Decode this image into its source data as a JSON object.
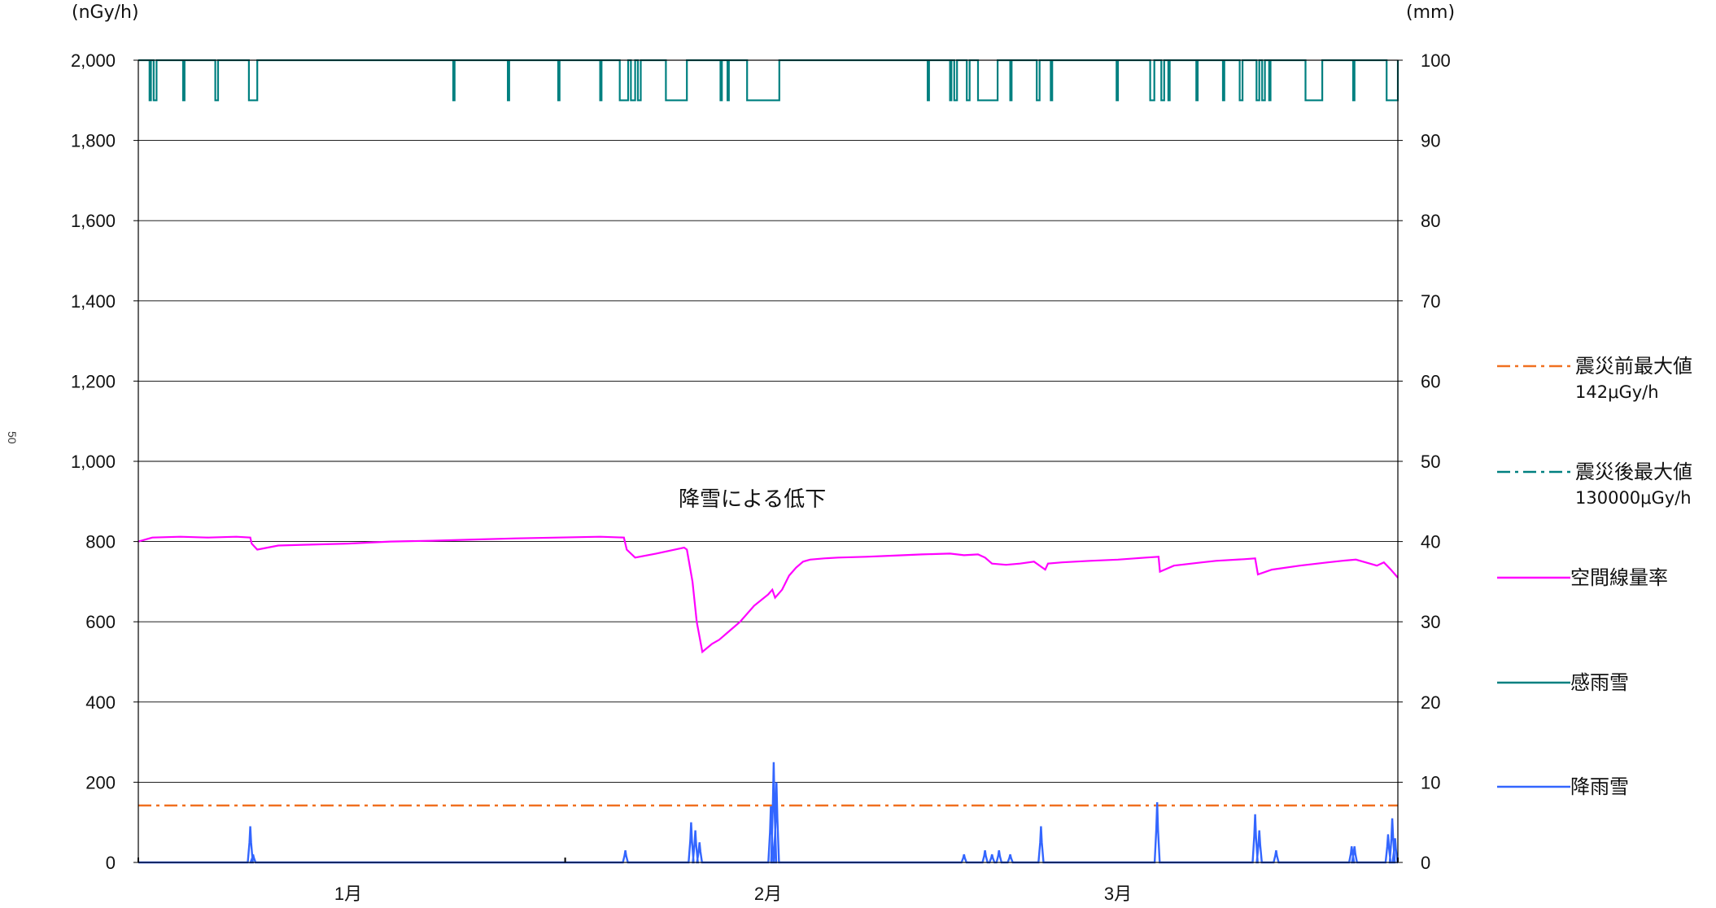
{
  "chart_data": {
    "type": "line",
    "y_left_unit": "(nGy/h)",
    "y_right_unit": "(mm)",
    "y_left_lim": [
      0,
      2000
    ],
    "y_right_lim": [
      0,
      100
    ],
    "y_left_ticks": [
      "0",
      "200",
      "400",
      "600",
      "800",
      "1,000",
      "1,200",
      "1,400",
      "1,600",
      "1,800",
      "2,000"
    ],
    "y_right_ticks": [
      "0",
      "10",
      "20",
      "30",
      "40",
      "50",
      "60",
      "70",
      "80",
      "90",
      "100"
    ],
    "x_range_days": [
      0,
      90
    ],
    "x_month_labels": [
      {
        "label": "1月",
        "day": 15
      },
      {
        "label": "2月",
        "day": 45
      },
      {
        "label": "3月",
        "day": 70
      }
    ],
    "x_tick_marks": [
      0,
      30.5,
      90
    ],
    "annotation": "降雪による低下",
    "page_number": "50",
    "series": [
      {
        "name": "震災前最大値",
        "legend_sub": "142μGy/h",
        "axis": "left",
        "style": "dashdot",
        "color": "#F07020",
        "x": [
          0,
          90
        ],
        "y": [
          142,
          142
        ]
      },
      {
        "name": "震災後最大値",
        "legend_sub": "130000μGy/h",
        "axis": "left",
        "style": "dashdot",
        "color": "#008080",
        "x": [],
        "y": []
      },
      {
        "name": "空間線量率",
        "axis": "left",
        "style": "solid",
        "color": "#FF00FF",
        "x": [
          0,
          1,
          3,
          5,
          7,
          8,
          8.1,
          8.5,
          10,
          12,
          15,
          18,
          21,
          24,
          27,
          30,
          33,
          34.7,
          34.9,
          35.5,
          37,
          39,
          39.2,
          39.6,
          39.9,
          40.3,
          41,
          41.5,
          42,
          43,
          44,
          45,
          45.3,
          45.5,
          46,
          46.5,
          47,
          47.5,
          48,
          49,
          50,
          52,
          54,
          56,
          58,
          59,
          60,
          60.5,
          61,
          62,
          63,
          64,
          64.8,
          65,
          66,
          68,
          70,
          72,
          72.9,
          73,
          74,
          76,
          77,
          79,
          79.8,
          80,
          81,
          83,
          85,
          86,
          87,
          88,
          88.5,
          89,
          89.5,
          90
        ],
        "y": [
          800,
          810,
          812,
          810,
          812,
          810,
          795,
          780,
          790,
          792,
          795,
          800,
          802,
          805,
          808,
          810,
          812,
          810,
          780,
          760,
          770,
          785,
          780,
          700,
          600,
          525,
          545,
          555,
          570,
          600,
          640,
          668,
          680,
          660,
          680,
          715,
          735,
          750,
          755,
          758,
          760,
          762,
          765,
          768,
          770,
          766,
          768,
          760,
          745,
          742,
          745,
          750,
          730,
          745,
          748,
          752,
          755,
          760,
          762,
          725,
          740,
          748,
          752,
          756,
          758,
          718,
          730,
          740,
          748,
          752,
          755,
          745,
          740,
          748,
          730,
          710
        ]
      },
      {
        "name": "感雨雪",
        "axis": "right",
        "style": "solid",
        "color": "#008080",
        "high": 100,
        "low": 95,
        "dips": [
          [
            0.8,
            0.9
          ],
          [
            1.1,
            1.3
          ],
          [
            3.2,
            3.3
          ],
          [
            5.5,
            5.7
          ],
          [
            7.9,
            8.5
          ],
          [
            22.5,
            22.6
          ],
          [
            26.4,
            26.5
          ],
          [
            30,
            30.1
          ],
          [
            33,
            33.1
          ],
          [
            34.4,
            35
          ],
          [
            35.2,
            35.5
          ],
          [
            35.7,
            35.9
          ],
          [
            37.7,
            39.2
          ],
          [
            41.6,
            41.7
          ],
          [
            42.1,
            42.2
          ],
          [
            43.5,
            45.8
          ],
          [
            56.4,
            56.5
          ],
          [
            58,
            58.1
          ],
          [
            58.3,
            58.5
          ],
          [
            59.2,
            59.4
          ],
          [
            60,
            61.4
          ],
          [
            62.3,
            62.4
          ],
          [
            64.2,
            64.4
          ],
          [
            65.2,
            65.3
          ],
          [
            69.9,
            70
          ],
          [
            72.3,
            72.6
          ],
          [
            73.1,
            73.3
          ],
          [
            73.6,
            73.7
          ],
          [
            75.6,
            75.7
          ],
          [
            77.5,
            77.6
          ],
          [
            78.7,
            78.9
          ],
          [
            79.9,
            80.1
          ],
          [
            80.3,
            80.5
          ],
          [
            80.8,
            80.9
          ],
          [
            83.4,
            84.6
          ],
          [
            86.8,
            86.9
          ],
          [
            89.2,
            90
          ]
        ]
      },
      {
        "name": "降雨雪",
        "axis": "right",
        "style": "solid",
        "color": "#3366FF",
        "spikes": [
          [
            8,
            4.5
          ],
          [
            8.2,
            1
          ],
          [
            34.8,
            1.5
          ],
          [
            39.5,
            5
          ],
          [
            39.8,
            4
          ],
          [
            40.1,
            2.5
          ],
          [
            45.4,
            12.5
          ],
          [
            45.6,
            10
          ],
          [
            45.2,
            7
          ],
          [
            59,
            1
          ],
          [
            60.5,
            1.5
          ],
          [
            61,
            1
          ],
          [
            61.5,
            1.5
          ],
          [
            62.3,
            1
          ],
          [
            64.5,
            4.5
          ],
          [
            72.8,
            7.5
          ],
          [
            79.8,
            6
          ],
          [
            80.1,
            4
          ],
          [
            81.3,
            1.5
          ],
          [
            86.7,
            2
          ],
          [
            86.9,
            2
          ],
          [
            89.3,
            3.5
          ],
          [
            89.6,
            5.5
          ],
          [
            89.8,
            3
          ]
        ]
      }
    ]
  }
}
